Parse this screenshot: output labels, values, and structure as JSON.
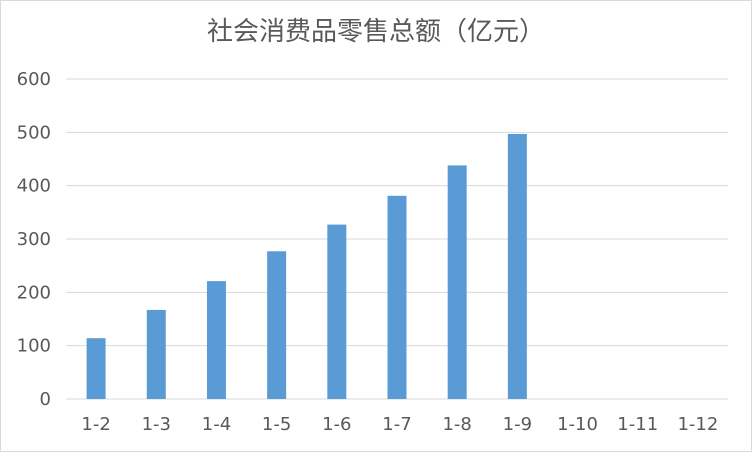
{
  "chart_data": {
    "type": "bar",
    "title": "社会消费品零售总额（亿元）",
    "categories": [
      "1-2",
      "1-3",
      "1-4",
      "1-5",
      "1-6",
      "1-7",
      "1-8",
      "1-9",
      "1-10",
      "1-11",
      "1-12"
    ],
    "values": [
      114,
      167,
      221,
      277,
      327,
      381,
      438,
      497,
      null,
      null,
      null
    ],
    "ylim": [
      0,
      600
    ],
    "yticks": [
      0,
      100,
      200,
      300,
      400,
      500,
      600
    ],
    "grid": true,
    "legend": "none",
    "bar_color": "#5b9bd5",
    "grid_color": "#d9d9d9"
  }
}
